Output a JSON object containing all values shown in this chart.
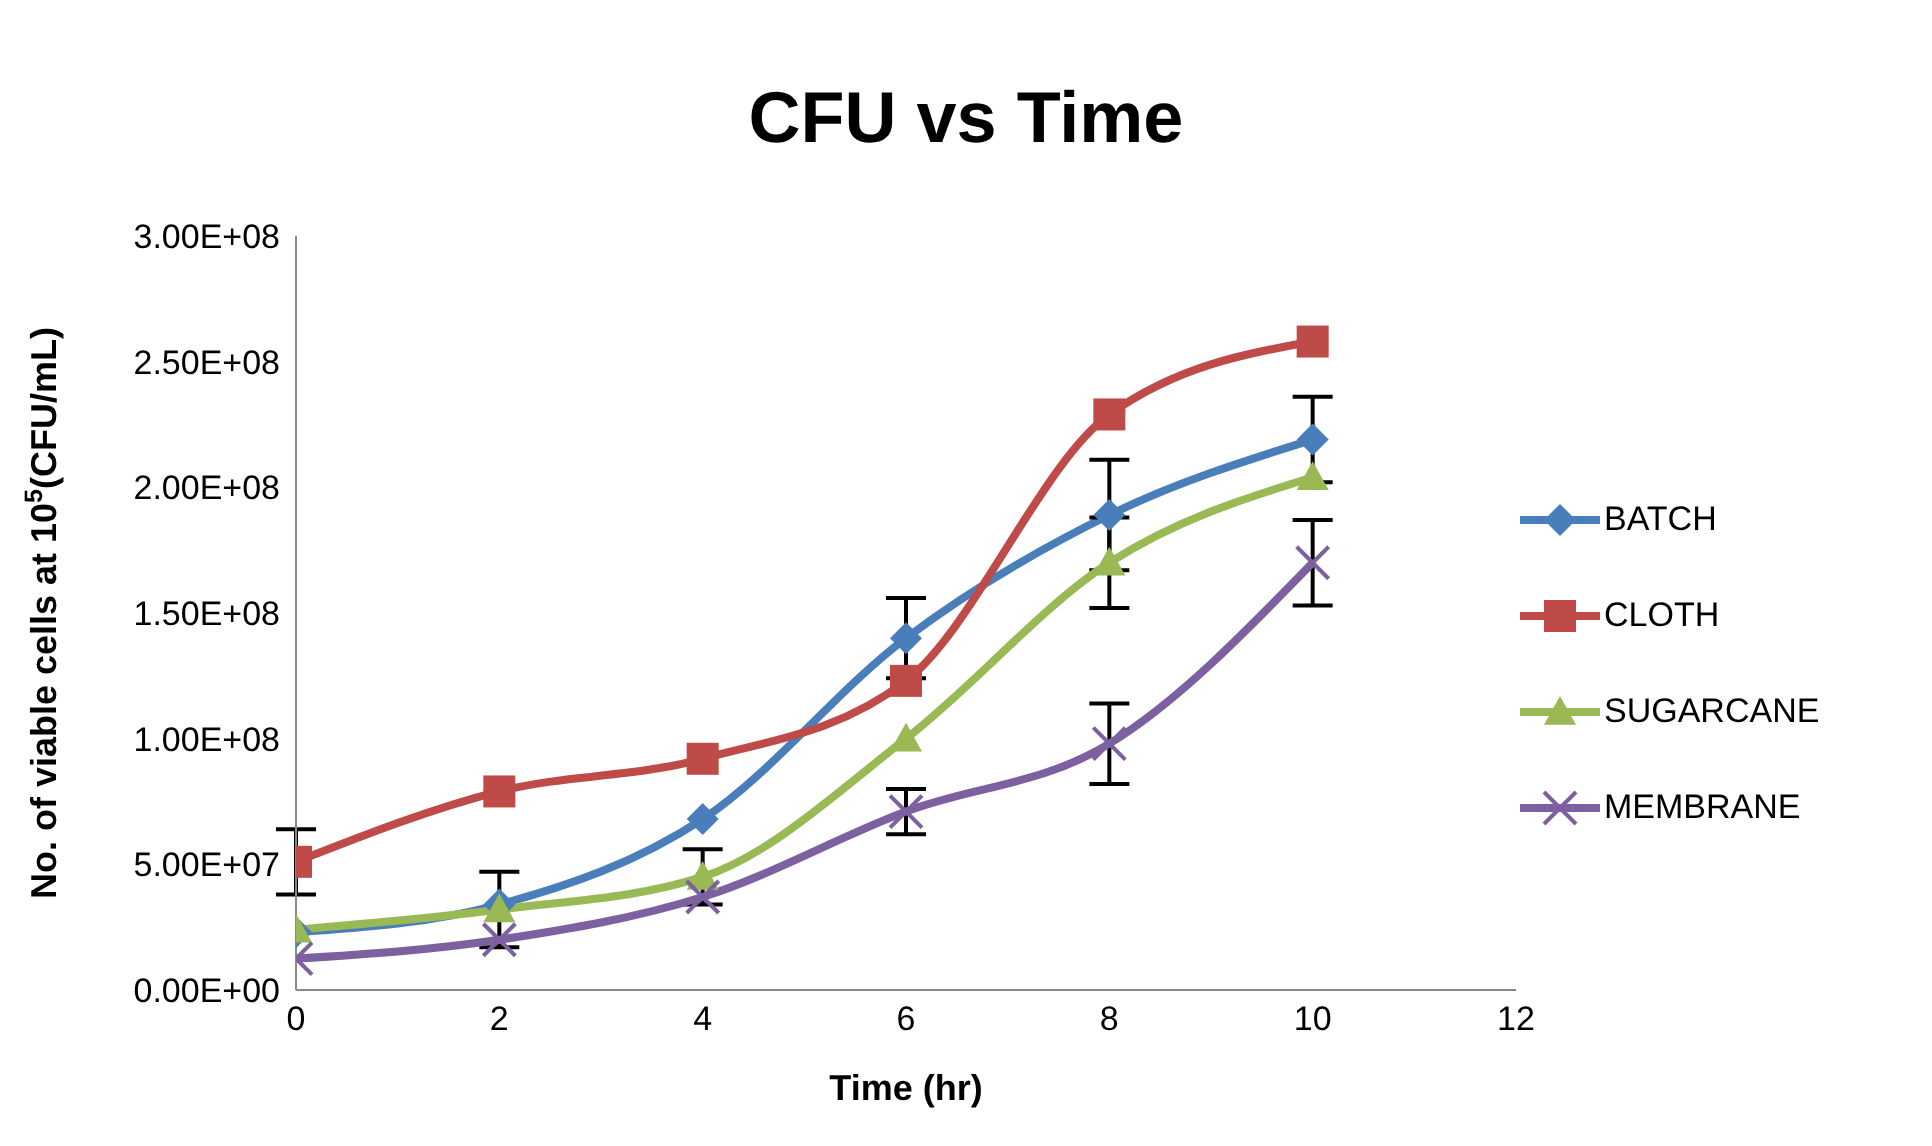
{
  "chart_data": {
    "type": "line",
    "title": "CFU vs Time",
    "xlabel": "Time (hr)",
    "ylabel": "No. of viable cells at 10$^{5}$(CFU/mL)",
    "x": [
      0,
      2,
      4,
      6,
      8,
      10
    ],
    "xlim": [
      0,
      12
    ],
    "xticks": [
      0,
      2,
      4,
      6,
      8,
      10,
      12
    ],
    "ylim": [
      0,
      300000000
    ],
    "yticks": [
      {
        "value": 0,
        "label": "0.00E+00"
      },
      {
        "value": 50000000,
        "label": "5.00E+07"
      },
      {
        "value": 100000000,
        "label": "1.00E+08"
      },
      {
        "value": 150000000,
        "label": "1.50E+08"
      },
      {
        "value": 200000000,
        "label": "2.00E+08"
      },
      {
        "value": 250000000,
        "label": "2.50E+08"
      },
      {
        "value": 300000000,
        "label": "3.00E+08"
      }
    ],
    "grid": false,
    "legend": "right",
    "line_style": "solid",
    "series": [
      {
        "name": "BATCH",
        "color": "#4a7ebb",
        "marker": "diamond",
        "values": [
          23000000,
          34000000,
          68000000,
          140000000,
          189000000,
          219000000
        ],
        "errors": [
          null,
          null,
          null,
          16000000,
          22000000,
          17000000
        ]
      },
      {
        "name": "CLOTH",
        "color": "#be4b48",
        "marker": "square",
        "values": [
          51000000,
          79000000,
          92000000,
          123000000,
          229000000,
          258000000
        ],
        "errors": [
          13000000,
          null,
          null,
          null,
          null,
          null
        ]
      },
      {
        "name": "SUGARCANE",
        "color": "#98b954",
        "marker": "triangle",
        "values": [
          24000000,
          32000000,
          45000000,
          100000000,
          170000000,
          204000000
        ],
        "errors": [
          null,
          15000000,
          11000000,
          null,
          18000000,
          null
        ]
      },
      {
        "name": "MEMBRANE",
        "color": "#7d60a0",
        "marker": "cross",
        "values": [
          12500000,
          20000000,
          37000000,
          71000000,
          98000000,
          170000000
        ],
        "errors": [
          null,
          null,
          null,
          9000000,
          16000000,
          17000000
        ]
      }
    ]
  }
}
